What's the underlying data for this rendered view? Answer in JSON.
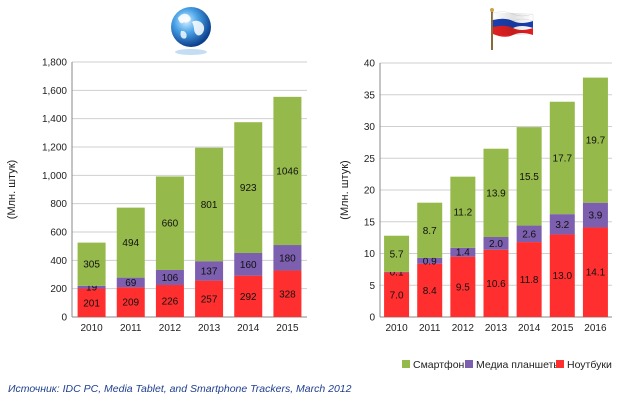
{
  "colors": {
    "notebooks": "#ff2f2f",
    "tablets": "#7c5fae",
    "smartphones": "#95b94a",
    "grid": "#cfcfcf",
    "axis": "#888888"
  },
  "icons": {
    "left": "globe-icon",
    "right": "russian-flag-icon"
  },
  "legend": [
    {
      "key": "smartphones",
      "label": "Смартфоны"
    },
    {
      "key": "tablets",
      "label": "Медиа планшеты"
    },
    {
      "key": "notebooks",
      "label": "Ноутбуки"
    }
  ],
  "source": "Источник: IDC PC, Media Tablet, and Smartphone Trackers, March 2012",
  "chart_data": [
    {
      "type": "bar",
      "stacked": true,
      "title": "",
      "ylabel": "(Млн. штук)",
      "xlabel": "",
      "ylim": [
        0,
        1800
      ],
      "yticks": [
        0,
        200,
        400,
        600,
        800,
        1000,
        1200,
        1400,
        1600,
        1800
      ],
      "ytick_labels": [
        "0",
        "200",
        "400",
        "600",
        "800",
        "1,000",
        "1,200",
        "1,400",
        "1,600",
        "1,800"
      ],
      "grid": true,
      "categories": [
        "2010",
        "2011",
        "2012",
        "2013",
        "2014",
        "2015"
      ],
      "series": [
        {
          "key": "notebooks",
          "name": "Ноутбуки",
          "values": [
            201,
            209,
            226,
            257,
            292,
            328
          ],
          "labels": [
            "201",
            "209",
            "226",
            "257",
            "292",
            "328"
          ]
        },
        {
          "key": "tablets",
          "name": "Медиа планшеты",
          "values": [
            19,
            69,
            106,
            137,
            160,
            180
          ],
          "labels": [
            "19",
            "69",
            "106",
            "137",
            "160",
            "180"
          ]
        },
        {
          "key": "smartphones",
          "name": "Смартфоны",
          "values": [
            305,
            494,
            660,
            801,
            923,
            1046
          ],
          "labels": [
            "305",
            "494",
            "660",
            "801",
            "923",
            "1046"
          ]
        }
      ]
    },
    {
      "type": "bar",
      "stacked": true,
      "title": "",
      "ylabel": "(Млн. штук)",
      "xlabel": "",
      "ylim": [
        0,
        40
      ],
      "yticks": [
        0,
        5,
        10,
        15,
        20,
        25,
        30,
        35,
        40
      ],
      "ytick_labels": [
        "0",
        "5",
        "10",
        "15",
        "20",
        "25",
        "30",
        "35",
        "40"
      ],
      "grid": true,
      "categories": [
        "2010",
        "2011",
        "2012",
        "2013",
        "2014",
        "2015",
        "2016"
      ],
      "series": [
        {
          "key": "notebooks",
          "name": "Ноутбуки",
          "values": [
            7.0,
            8.4,
            9.5,
            10.6,
            11.8,
            13.0,
            14.1
          ],
          "labels": [
            "7.0",
            "8.4",
            "9.5",
            "10.6",
            "11.8",
            "13.0",
            "14.1"
          ]
        },
        {
          "key": "tablets",
          "name": "Медиа планшеты",
          "values": [
            0.1,
            0.9,
            1.4,
            2.0,
            2.6,
            3.2,
            3.9
          ],
          "labels": [
            "0.1",
            "0.9",
            "1.4",
            "2.0",
            "2.6",
            "3.2",
            "3.9"
          ]
        },
        {
          "key": "smartphones",
          "name": "Смартфоны",
          "values": [
            5.7,
            8.7,
            11.2,
            13.9,
            15.5,
            17.7,
            19.7
          ],
          "labels": [
            "5.7",
            "8.7",
            "11.2",
            "13.9",
            "15.5",
            "17.7",
            "19.7"
          ]
        }
      ]
    }
  ]
}
